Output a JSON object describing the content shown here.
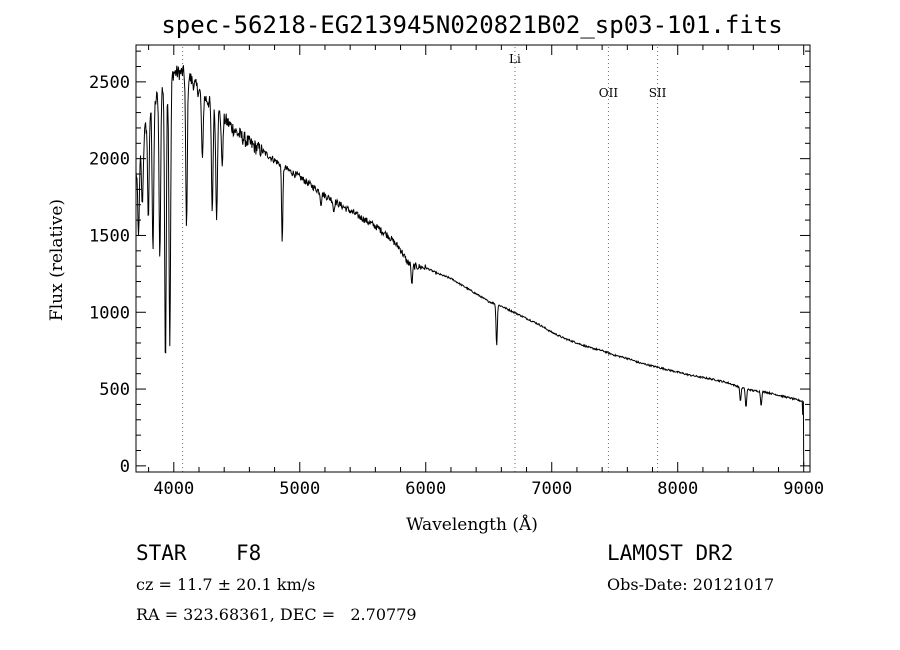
{
  "chart_data": {
    "type": "line",
    "title": "spec-56218-EG213945N020821B02_sp03-101.fits",
    "xlabel": "Wavelength (Å)",
    "ylabel": "Flux (relative)",
    "xlim": [
      3700,
      9050
    ],
    "ylim": [
      -40,
      2740
    ],
    "xticks": [
      4000,
      5000,
      6000,
      7000,
      8000,
      9000
    ],
    "yticks": [
      0,
      500,
      1000,
      1500,
      2000,
      2500
    ],
    "series": [
      {
        "name": "flux",
        "continuum": [
          [
            3700,
            1900
          ],
          [
            3800,
            2300
          ],
          [
            3900,
            2450
          ],
          [
            4000,
            2560
          ],
          [
            4100,
            2560
          ],
          [
            4200,
            2440
          ],
          [
            4300,
            2350
          ],
          [
            4400,
            2260
          ],
          [
            4500,
            2170
          ],
          [
            4600,
            2100
          ],
          [
            4700,
            2050
          ],
          [
            4800,
            1990
          ],
          [
            4900,
            1930
          ],
          [
            5000,
            1880
          ],
          [
            5100,
            1820
          ],
          [
            5200,
            1760
          ],
          [
            5300,
            1710
          ],
          [
            5400,
            1660
          ],
          [
            5500,
            1610
          ],
          [
            5600,
            1560
          ],
          [
            5700,
            1500
          ],
          [
            5800,
            1410
          ],
          [
            5850,
            1330
          ],
          [
            5900,
            1300
          ],
          [
            6000,
            1290
          ],
          [
            6100,
            1250
          ],
          [
            6200,
            1220
          ],
          [
            6300,
            1170
          ],
          [
            6400,
            1120
          ],
          [
            6500,
            1070
          ],
          [
            6600,
            1040
          ],
          [
            6700,
            1000
          ],
          [
            6800,
            960
          ],
          [
            6900,
            920
          ],
          [
            7000,
            870
          ],
          [
            7100,
            830
          ],
          [
            7200,
            800
          ],
          [
            7300,
            770
          ],
          [
            7400,
            750
          ],
          [
            7500,
            720
          ],
          [
            7600,
            700
          ],
          [
            7700,
            670
          ],
          [
            7800,
            650
          ],
          [
            7900,
            630
          ],
          [
            8000,
            610
          ],
          [
            8100,
            590
          ],
          [
            8200,
            575
          ],
          [
            8300,
            560
          ],
          [
            8400,
            540
          ],
          [
            8500,
            510
          ],
          [
            8600,
            490
          ],
          [
            8700,
            480
          ],
          [
            8800,
            460
          ],
          [
            8900,
            440
          ],
          [
            8990,
            420
          ],
          [
            9000,
            0
          ]
        ],
        "absorption": [
          [
            3720,
            1500
          ],
          [
            3750,
            1700
          ],
          [
            3798,
            1600
          ],
          [
            3835,
            1400
          ],
          [
            3889,
            1350
          ],
          [
            3934,
            650
          ],
          [
            3968,
            780
          ],
          [
            4101,
            1550
          ],
          [
            4227,
            2000
          ],
          [
            4305,
            1650
          ],
          [
            4340,
            1600
          ],
          [
            4384,
            1950
          ],
          [
            4861,
            1450
          ],
          [
            5169,
            1690
          ],
          [
            5270,
            1650
          ],
          [
            5890,
            1180
          ],
          [
            6563,
            780
          ],
          [
            8498,
            420
          ],
          [
            8542,
            380
          ],
          [
            8662,
            390
          ]
        ],
        "noise": 45
      }
    ],
    "reference_lines": [
      {
        "name": "",
        "x": 4070,
        "color": "#d64545"
      },
      {
        "name": "Li",
        "x": 6708,
        "color": "#d64545"
      },
      {
        "name": "OII",
        "x": 7450,
        "color": "#d64545"
      },
      {
        "name": "SII",
        "x": 7840,
        "color": "#d64545"
      }
    ]
  },
  "info": {
    "object_class": "STAR",
    "subclass": "F8",
    "survey": "LAMOST DR2",
    "redshift": "cz = 11.7 ± 20.1 km/s",
    "obs_date": "Obs-Date: 20121017",
    "coords": "RA = 323.68361, DEC =   2.70779"
  }
}
